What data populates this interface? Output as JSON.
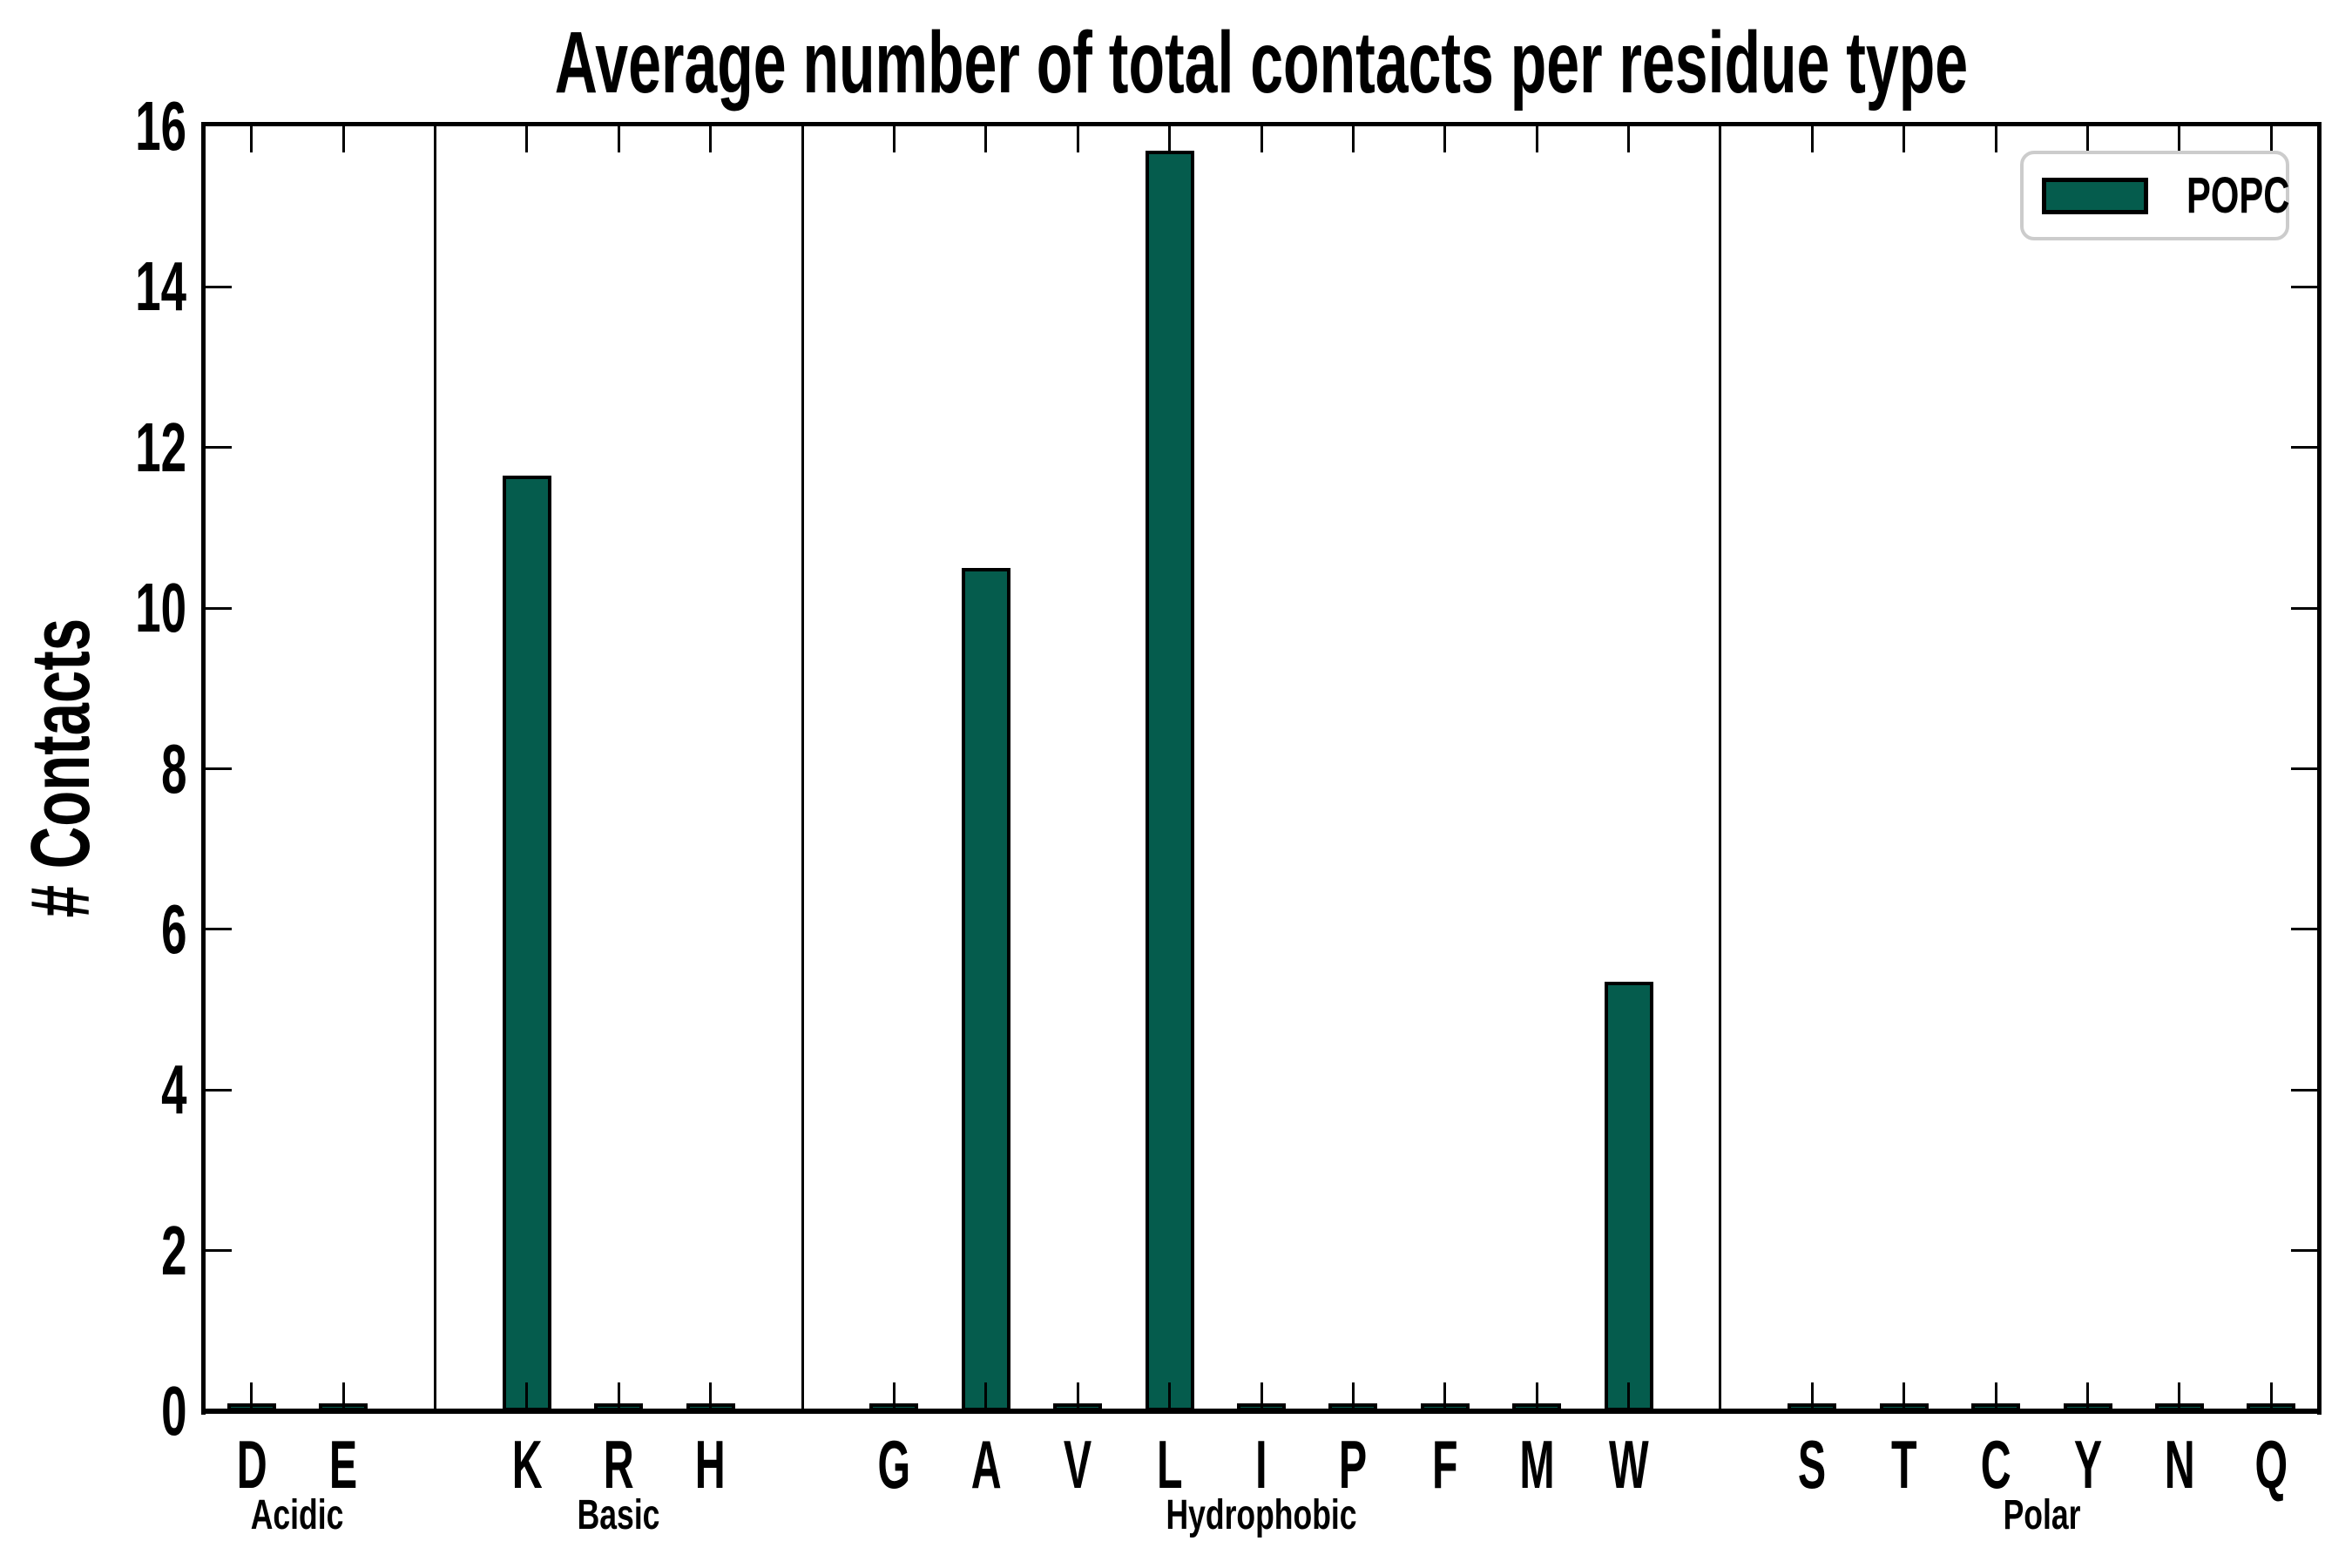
{
  "title": "Average number of total contacts per residue type",
  "ylabel": "# Contacts",
  "colors": {
    "bar_fill": "#055c4d",
    "bar_edge": "#000000",
    "axes": "#000000",
    "legend_border": "#cccccc",
    "background": "#ffffff"
  },
  "legend": {
    "position": "upper right",
    "entries": [
      "POPC"
    ]
  },
  "chart_data": {
    "type": "bar",
    "title": "Average number of total contacts per residue type",
    "xlabel": "",
    "ylabel": "# Contacts",
    "ylim": [
      0,
      16
    ],
    "yticks": [
      0,
      2,
      4,
      6,
      8,
      10,
      12,
      14,
      16
    ],
    "xlim": [
      -0.5,
      22.5
    ],
    "bar_width": 0.53,
    "grid": false,
    "legend_entries": [
      "POPC"
    ],
    "series": [
      {
        "name": "POPC",
        "color": "#055c4d",
        "points": [
          {
            "label": "D",
            "x": 0,
            "y": 0.05,
            "group": "Acidic"
          },
          {
            "label": "E",
            "x": 1,
            "y": 0.05,
            "group": "Acidic"
          },
          {
            "label": "K",
            "x": 3,
            "y": 11.65,
            "group": "Basic"
          },
          {
            "label": "R",
            "x": 4,
            "y": 0.05,
            "group": "Basic"
          },
          {
            "label": "H",
            "x": 5,
            "y": 0.05,
            "group": "Basic"
          },
          {
            "label": "G",
            "x": 7,
            "y": 0.05,
            "group": "Hydrophobic"
          },
          {
            "label": "A",
            "x": 8,
            "y": 10.5,
            "group": "Hydrophobic"
          },
          {
            "label": "V",
            "x": 9,
            "y": 0.05,
            "group": "Hydrophobic"
          },
          {
            "label": "L",
            "x": 10,
            "y": 15.7,
            "group": "Hydrophobic"
          },
          {
            "label": "I",
            "x": 11,
            "y": 0.05,
            "group": "Hydrophobic"
          },
          {
            "label": "P",
            "x": 12,
            "y": 0.05,
            "group": "Hydrophobic"
          },
          {
            "label": "F",
            "x": 13,
            "y": 0.05,
            "group": "Hydrophobic"
          },
          {
            "label": "M",
            "x": 14,
            "y": 0.05,
            "group": "Hydrophobic"
          },
          {
            "label": "W",
            "x": 15,
            "y": 5.35,
            "group": "Hydrophobic"
          },
          {
            "label": "S",
            "x": 17,
            "y": 0.05,
            "group": "Polar"
          },
          {
            "label": "T",
            "x": 18,
            "y": 0.05,
            "group": "Polar"
          },
          {
            "label": "C",
            "x": 19,
            "y": 0.05,
            "group": "Polar"
          },
          {
            "label": "Y",
            "x": 20,
            "y": 0.05,
            "group": "Polar"
          },
          {
            "label": "N",
            "x": 21,
            "y": 0.05,
            "group": "Polar"
          },
          {
            "label": "Q",
            "x": 22,
            "y": 0.05,
            "group": "Polar"
          }
        ]
      }
    ],
    "group_separators_x": [
      2,
      6,
      16
    ],
    "group_labels": [
      {
        "label": "Acidic",
        "x": 0.5
      },
      {
        "label": "Basic",
        "x": 4
      },
      {
        "label": "Hydrophobic",
        "x": 11
      },
      {
        "label": "Polar",
        "x": 19.5
      }
    ]
  }
}
